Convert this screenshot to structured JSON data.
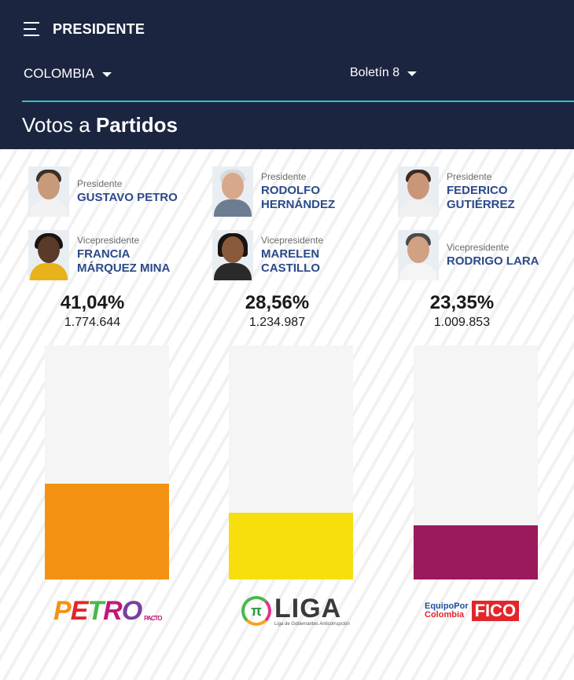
{
  "header": {
    "menu_title": "PRESIDENTE",
    "country": "COLOMBIA",
    "bulletin": "Boletín 8",
    "section_title_light": "Votos a ",
    "section_title_bold": "Partidos",
    "accent_color": "#2fbfc9",
    "background_color": "#1b2540"
  },
  "candidates": [
    {
      "president_role": "Presidente",
      "president_name": "GUSTAVO PETRO",
      "vice_role": "Vicepresidente",
      "vice_name": "FRANCIA\nMÁRQUEZ MINA",
      "percentage": "41,04%",
      "votes": "1.774.644",
      "bar_fraction": 0.4104,
      "bar_color": "#f39212",
      "logo_text": "PETRO",
      "logo_sub": "PACTO"
    },
    {
      "president_role": "Presidente",
      "president_name": "RODOLFO\nHERNÁNDEZ",
      "vice_role": "Vicepresidente",
      "vice_name": "MARELEN\nCASTILLO",
      "percentage": "28,56%",
      "votes": "1.234.987",
      "bar_fraction": 0.2856,
      "bar_color": "#f6df0d",
      "logo_symbol": "π",
      "logo_text": "LIGA",
      "logo_sub": "Liga de Gobernantes Anticorrupción"
    },
    {
      "president_role": "Presidente",
      "president_name": "FEDERICO\nGUTIÉRREZ",
      "vice_role": "Vicepresidente",
      "vice_name": "RODRIGO LARA",
      "percentage": "23,35%",
      "votes": "1.009.853",
      "bar_fraction": 0.2335,
      "bar_color": "#9b1a5e",
      "logo_line1": "EquipoPor",
      "logo_line2": "Colombia",
      "logo_text": "FICO"
    }
  ]
}
